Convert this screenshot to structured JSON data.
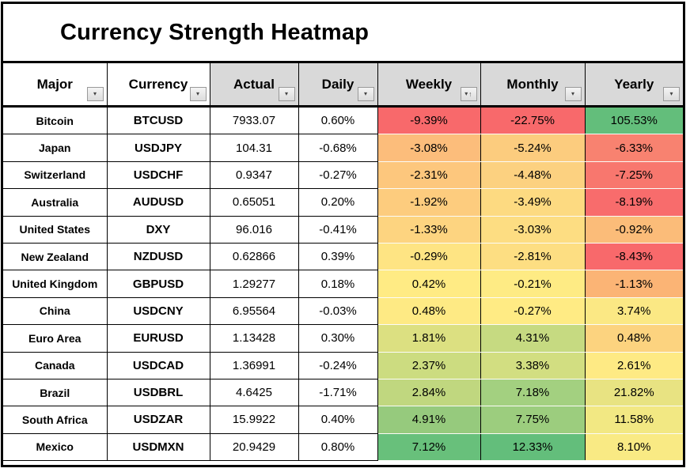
{
  "title": "Currency Strength Heatmap",
  "colors": {
    "header_bg": "#D9D9D9",
    "header_bg_plain": "#FFFFFF",
    "grid": "#000000",
    "scale_low": "#F8696B",
    "scale_mid": "#FFEB84",
    "scale_high": "#63BE7B"
  },
  "table": {
    "columns": [
      {
        "label": "Major",
        "header_bg": "#FFFFFF",
        "filter": "dropdown"
      },
      {
        "label": "Currency",
        "header_bg": "#FFFFFF",
        "filter": "dropdown"
      },
      {
        "label": "Actual",
        "header_bg": "#D9D9D9",
        "filter": "dropdown"
      },
      {
        "label": "Daily",
        "header_bg": "#D9D9D9",
        "filter": "dropdown"
      },
      {
        "label": "Weekly",
        "header_bg": "#D9D9D9",
        "filter": "dropdown-sort-asc"
      },
      {
        "label": "Monthly",
        "header_bg": "#D9D9D9",
        "filter": "dropdown"
      },
      {
        "label": "Yearly",
        "header_bg": "#D9D9D9",
        "filter": "dropdown"
      }
    ],
    "rows": [
      {
        "major": "Bitcoin",
        "currency": "BTCUSD",
        "actual": "7933.07",
        "daily": "0.60%",
        "weekly": {
          "text": "-9.39%",
          "bg": "#F8696B"
        },
        "monthly": {
          "text": "-22.75%",
          "bg": "#F8696B"
        },
        "yearly": {
          "text": "105.53%",
          "bg": "#63BE7B"
        }
      },
      {
        "major": "Japan",
        "currency": "USDJPY",
        "actual": "104.31",
        "daily": "-0.68%",
        "weekly": {
          "text": "-3.08%",
          "bg": "#FCBD7B"
        },
        "monthly": {
          "text": "-5.24%",
          "bg": "#FCCC7E"
        },
        "yearly": {
          "text": "-6.33%",
          "bg": "#F88270"
        }
      },
      {
        "major": "Switzerland",
        "currency": "USDCHF",
        "actual": "0.9347",
        "daily": "-0.27%",
        "weekly": {
          "text": "-2.31%",
          "bg": "#FDC77D"
        },
        "monthly": {
          "text": "-4.48%",
          "bg": "#FCD180"
        },
        "yearly": {
          "text": "-7.25%",
          "bg": "#F8776E"
        }
      },
      {
        "major": "Australia",
        "currency": "AUDUSD",
        "actual": "0.65051",
        "daily": "0.20%",
        "weekly": {
          "text": "-1.92%",
          "bg": "#FDCC7E"
        },
        "monthly": {
          "text": "-3.49%",
          "bg": "#FDDA81"
        },
        "yearly": {
          "text": "-8.19%",
          "bg": "#F86C6C"
        }
      },
      {
        "major": "United States",
        "currency": "DXY",
        "actual": "96.016",
        "daily": "-0.41%",
        "weekly": {
          "text": "-1.33%",
          "bg": "#FDD480"
        },
        "monthly": {
          "text": "-3.03%",
          "bg": "#FDDD82"
        },
        "yearly": {
          "text": "-0.92%",
          "bg": "#FBBC79"
        }
      },
      {
        "major": "New Zealand",
        "currency": "NZDUSD",
        "actual": "0.62866",
        "daily": "0.39%",
        "weekly": {
          "text": "-0.29%",
          "bg": "#FEE483"
        },
        "monthly": {
          "text": "-2.81%",
          "bg": "#FDDE82"
        },
        "yearly": {
          "text": "-8.43%",
          "bg": "#F8696B"
        }
      },
      {
        "major": "United Kingdom",
        "currency": "GBPUSD",
        "actual": "1.29277",
        "daily": "0.18%",
        "weekly": {
          "text": "0.42%",
          "bg": "#FFEB84"
        },
        "monthly": {
          "text": "-0.21%",
          "bg": "#FEEB84"
        },
        "yearly": {
          "text": "-1.13%",
          "bg": "#FBB475"
        }
      },
      {
        "major": "China",
        "currency": "USDCNY",
        "actual": "6.95564",
        "daily": "-0.03%",
        "weekly": {
          "text": "0.48%",
          "bg": "#FEEA84"
        },
        "monthly": {
          "text": "-0.27%",
          "bg": "#FFEB84"
        },
        "yearly": {
          "text": "3.74%",
          "bg": "#FBE884"
        }
      },
      {
        "major": "Euro Area",
        "currency": "EURUSD",
        "actual": "1.13428",
        "daily": "0.30%",
        "weekly": {
          "text": "1.81%",
          "bg": "#DCE081"
        },
        "monthly": {
          "text": "4.31%",
          "bg": "#C6DA81"
        },
        "yearly": {
          "text": "0.48%",
          "bg": "#FCD37F"
        }
      },
      {
        "major": "Canada",
        "currency": "USDCAD",
        "actual": "1.36991",
        "daily": "-0.24%",
        "weekly": {
          "text": "2.37%",
          "bg": "#CCDC80"
        },
        "monthly": {
          "text": "3.38%",
          "bg": "#D2DE81"
        },
        "yearly": {
          "text": "2.61%",
          "bg": "#FEEA84"
        }
      },
      {
        "major": "Brazil",
        "currency": "USDBRL",
        "actual": "4.6425",
        "daily": "-1.71%",
        "weekly": {
          "text": "2.84%",
          "bg": "#C0D77F"
        },
        "monthly": {
          "text": "7.18%",
          "bg": "#A3D080"
        },
        "yearly": {
          "text": "21.82%",
          "bg": "#E8E382"
        }
      },
      {
        "major": "South Africa",
        "currency": "USDZAR",
        "actual": "15.9922",
        "daily": "0.40%",
        "weekly": {
          "text": "4.91%",
          "bg": "#96CA7D"
        },
        "monthly": {
          "text": "7.75%",
          "bg": "#9CCD7E"
        },
        "yearly": {
          "text": "11.58%",
          "bg": "#F2E883"
        }
      },
      {
        "major": "Mexico",
        "currency": "USDMXN",
        "actual": "20.9429",
        "daily": "0.80%",
        "weekly": {
          "text": "7.12%",
          "bg": "#68C07B"
        },
        "monthly": {
          "text": "12.33%",
          "bg": "#63BE7B"
        },
        "yearly": {
          "text": "8.10%",
          "bg": "#F9EA84"
        }
      }
    ]
  },
  "chart_data": {
    "type": "heatmap",
    "title": "Currency Strength Heatmap",
    "columns": [
      "Major",
      "Currency",
      "Actual",
      "Daily",
      "Weekly",
      "Monthly",
      "Yearly"
    ],
    "heat_columns": [
      "Weekly",
      "Monthly",
      "Yearly"
    ],
    "color_scale": {
      "low": "#F8696B",
      "mid": "#FFEB84",
      "high": "#63BE7B",
      "applied": "per-column 3-color scale"
    },
    "sorted_by": "Weekly ascending",
    "rows": [
      {
        "major": "Bitcoin",
        "currency": "BTCUSD",
        "actual": 7933.07,
        "daily_pct": 0.6,
        "weekly_pct": -9.39,
        "monthly_pct": -22.75,
        "yearly_pct": 105.53
      },
      {
        "major": "Japan",
        "currency": "USDJPY",
        "actual": 104.31,
        "daily_pct": -0.68,
        "weekly_pct": -3.08,
        "monthly_pct": -5.24,
        "yearly_pct": -6.33
      },
      {
        "major": "Switzerland",
        "currency": "USDCHF",
        "actual": 0.9347,
        "daily_pct": -0.27,
        "weekly_pct": -2.31,
        "monthly_pct": -4.48,
        "yearly_pct": -7.25
      },
      {
        "major": "Australia",
        "currency": "AUDUSD",
        "actual": 0.65051,
        "daily_pct": 0.2,
        "weekly_pct": -1.92,
        "monthly_pct": -3.49,
        "yearly_pct": -8.19
      },
      {
        "major": "United States",
        "currency": "DXY",
        "actual": 96.016,
        "daily_pct": -0.41,
        "weekly_pct": -1.33,
        "monthly_pct": -3.03,
        "yearly_pct": -0.92
      },
      {
        "major": "New Zealand",
        "currency": "NZDUSD",
        "actual": 0.62866,
        "daily_pct": 0.39,
        "weekly_pct": -0.29,
        "monthly_pct": -2.81,
        "yearly_pct": -8.43
      },
      {
        "major": "United Kingdom",
        "currency": "GBPUSD",
        "actual": 1.29277,
        "daily_pct": 0.18,
        "weekly_pct": 0.42,
        "monthly_pct": -0.21,
        "yearly_pct": -1.13
      },
      {
        "major": "China",
        "currency": "USDCNY",
        "actual": 6.95564,
        "daily_pct": -0.03,
        "weekly_pct": 0.48,
        "monthly_pct": -0.27,
        "yearly_pct": 3.74
      },
      {
        "major": "Euro Area",
        "currency": "EURUSD",
        "actual": 1.13428,
        "daily_pct": 0.3,
        "weekly_pct": 1.81,
        "monthly_pct": 4.31,
        "yearly_pct": 0.48
      },
      {
        "major": "Canada",
        "currency": "USDCAD",
        "actual": 1.36991,
        "daily_pct": -0.24,
        "weekly_pct": 2.37,
        "monthly_pct": 3.38,
        "yearly_pct": 2.61
      },
      {
        "major": "Brazil",
        "currency": "USDBRL",
        "actual": 4.6425,
        "daily_pct": -1.71,
        "weekly_pct": 2.84,
        "monthly_pct": 7.18,
        "yearly_pct": 21.82
      },
      {
        "major": "South Africa",
        "currency": "USDZAR",
        "actual": 15.9922,
        "daily_pct": 0.4,
        "weekly_pct": 4.91,
        "monthly_pct": 7.75,
        "yearly_pct": 11.58
      },
      {
        "major": "Mexico",
        "currency": "USDMXN",
        "actual": 20.9429,
        "daily_pct": 0.8,
        "weekly_pct": 7.12,
        "monthly_pct": 12.33,
        "yearly_pct": 8.1
      }
    ]
  }
}
